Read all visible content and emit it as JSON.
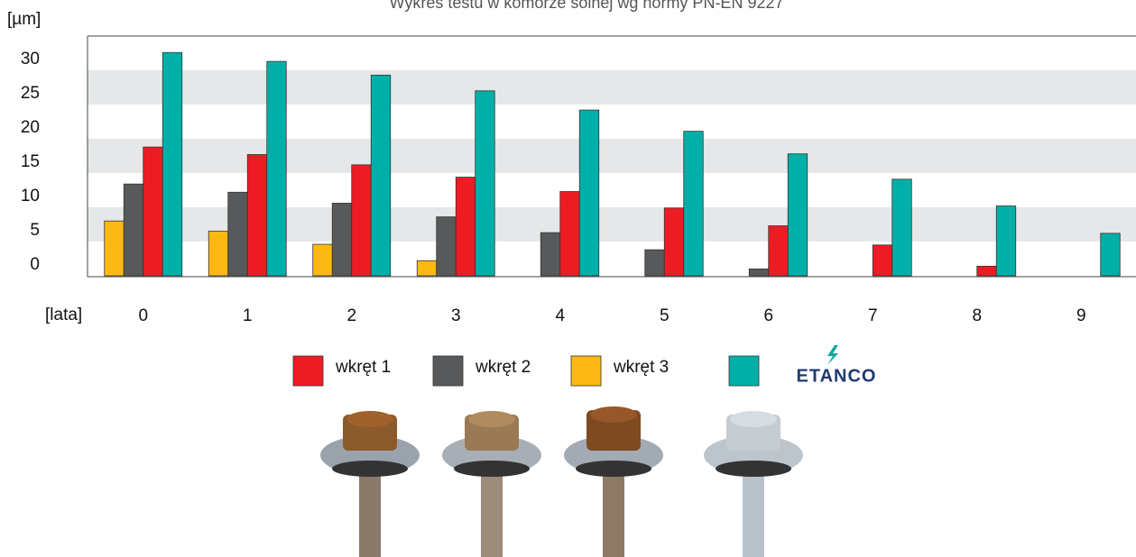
{
  "chart_data": {
    "type": "bar",
    "title": "Wykres testu w komorze solnej wg normy PN-EN 9227",
    "y_label": "[µm]",
    "x_label": "[lata]",
    "categories": [
      "0",
      "1",
      "2",
      "3",
      "4",
      "5",
      "6",
      "7",
      "8",
      "9"
    ],
    "series": [
      {
        "name": "wkręt 3",
        "color": "#fdb913",
        "values": [
          8.0,
          6.5,
          4.6,
          2.2,
          null,
          null,
          null,
          null,
          null,
          null
        ]
      },
      {
        "name": "wkręt 2",
        "color": "#58595b",
        "values": [
          13.4,
          12.2,
          10.6,
          8.6,
          6.3,
          3.8,
          1.0,
          null,
          null,
          null
        ]
      },
      {
        "name": "wkręt 1",
        "color": "#ed1c24",
        "values": [
          18.8,
          17.7,
          16.2,
          14.4,
          12.3,
          9.9,
          7.3,
          4.5,
          1.4,
          null
        ]
      },
      {
        "name": "ETANCO",
        "color": "#00b0a8",
        "values": [
          32.6,
          31.3,
          29.3,
          27.0,
          24.2,
          21.1,
          17.8,
          14.1,
          10.2,
          6.2
        ]
      }
    ],
    "legend_order": [
      2,
      1,
      0,
      3
    ],
    "ylim": [
      0,
      35
    ],
    "yticks": [
      0,
      5,
      10,
      15,
      20,
      25,
      30
    ],
    "grid": "bands"
  }
}
